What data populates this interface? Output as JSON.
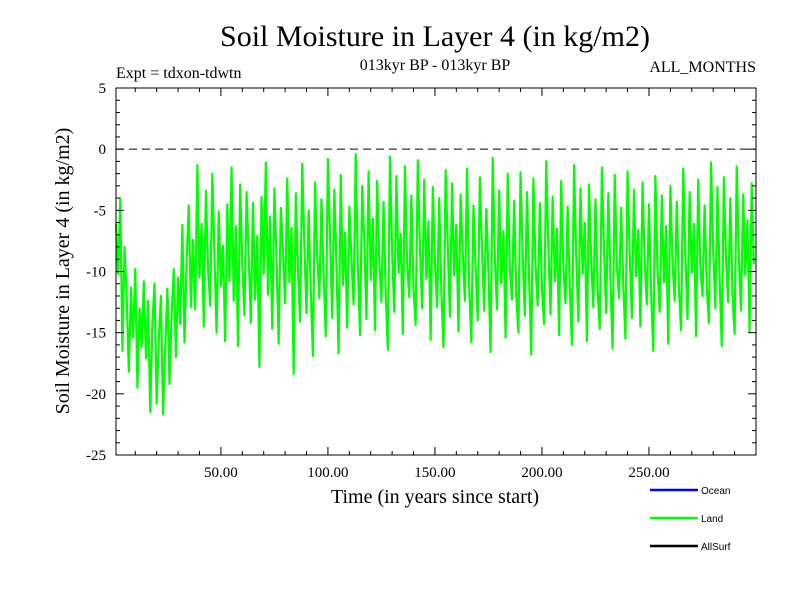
{
  "chart_data": {
    "type": "line",
    "title": "Soil Moisture in Layer 4 (in kg/m2)",
    "subtitle_left": "Expt = tdxon-tdwtn",
    "subtitle_center": "013kyr BP - 013kyr BP",
    "subtitle_right": "ALL_MONTHS",
    "xlabel": "Time (in years since start)",
    "ylabel": "Soil Moisture in Layer 4 (in kg/m2)",
    "xlim": [
      1,
      300
    ],
    "ylim": [
      -25,
      5
    ],
    "x_ticks": [
      {
        "value": 50,
        "label": "50.00"
      },
      {
        "value": 100,
        "label": "100.00"
      },
      {
        "value": 150,
        "label": "150.00"
      },
      {
        "value": 200,
        "label": "200.00"
      },
      {
        "value": 250,
        "label": "250.00"
      }
    ],
    "y_ticks": [
      {
        "value": 5,
        "label": "5"
      },
      {
        "value": 0,
        "label": "0"
      },
      {
        "value": -5,
        "label": "-5"
      },
      {
        "value": -10,
        "label": "-10"
      },
      {
        "value": -15,
        "label": "-15"
      },
      {
        "value": -20,
        "label": "-20"
      },
      {
        "value": -25,
        "label": "-25"
      }
    ],
    "reference_line": {
      "y": 0,
      "style": "dashed"
    },
    "legend": {
      "placement": "bottom-right",
      "entries": [
        {
          "name": "Ocean",
          "color": "#0000ff"
        },
        {
          "name": "Land",
          "color": "#00ff00"
        },
        {
          "name": "AllSurf",
          "color": "#000000"
        }
      ]
    },
    "series": [
      {
        "name": "Land",
        "color": "#00ff00",
        "x_start": 1,
        "x_step": 1,
        "values": [
          -6.1,
          -10.2,
          -4.0,
          -16.5,
          -8.0,
          -12.1,
          -18.2,
          -11.3,
          -15.4,
          -9.8,
          -19.5,
          -13.0,
          -16.2,
          -10.8,
          -17.1,
          -12.4,
          -21.5,
          -14.2,
          -11.0,
          -20.8,
          -15.5,
          -12.0,
          -21.7,
          -16.3,
          -11.4,
          -19.2,
          -13.5,
          -9.8,
          -17.0,
          -10.5,
          -14.3,
          -6.2,
          -15.8,
          -9.1,
          -4.6,
          -12.9,
          -7.4,
          -13.1,
          -1.3,
          -10.5,
          -6.1,
          -14.5,
          -3.4,
          -9.7,
          -12.8,
          -2.0,
          -8.8,
          -15.0,
          -5.1,
          -11.2,
          -7.9,
          -15.7,
          -4.5,
          -10.8,
          -1.5,
          -12.4,
          -6.3,
          -16.1,
          -2.9,
          -9.4,
          -13.6,
          -3.5,
          -8.7,
          -14.2,
          -4.4,
          -12.3,
          -7.1,
          -17.8,
          -3.9,
          -10.2,
          -1.1,
          -11.9,
          -5.5,
          -14.7,
          -3.2,
          -9.0,
          -15.9,
          -4.8,
          -8.3,
          -12.6,
          -2.4,
          -10.9,
          -6.4,
          -18.4,
          -3.6,
          -9.9,
          -14.1,
          -1.2,
          -7.8,
          -13.4,
          -5.0,
          -11.6,
          -16.9,
          -2.7,
          -8.6,
          -12.2,
          -4.1,
          -10.4,
          -15.3,
          -0.8,
          -7.2,
          -13.8,
          -3.3,
          -9.5,
          -16.7,
          -2.1,
          -11.1,
          -6.8,
          -14.6,
          -4.7,
          -8.9,
          -12.7,
          -0.4,
          -9.6,
          -15.2,
          -3.0,
          -7.5,
          -13.9,
          -1.8,
          -10.7,
          -5.7,
          -14.8,
          -2.6,
          -9.2,
          -12.5,
          -4.3,
          -11.8,
          -16.4,
          -0.6,
          -8.4,
          -13.3,
          -2.2,
          -10.1,
          -6.9,
          -15.1,
          -1.4,
          -9.3,
          -12.1,
          -3.8,
          -11.5,
          -14.4,
          -0.9,
          -8.1,
          -13.0,
          -2.5,
          -10.6,
          -5.9,
          -15.6,
          -3.1,
          -9.1,
          -12.9,
          -4.0,
          -11.7,
          -16.2,
          -1.7,
          -7.9,
          -13.7,
          -2.8,
          -10.3,
          -6.2,
          -14.9,
          -3.7,
          -8.5,
          -12.4,
          -1.6,
          -11.3,
          -15.8,
          -4.6,
          -9.7,
          -14.0,
          -2.3,
          -8.2,
          -13.2,
          -4.9,
          -10.0,
          -16.6,
          -0.7,
          -9.0,
          -13.1,
          -3.4,
          -11.0,
          -6.7,
          -15.4,
          -2.0,
          -9.8,
          -12.3,
          -4.2,
          -11.9,
          -15.0,
          -1.9,
          -8.8,
          -13.6,
          -3.5,
          -10.5,
          -16.8,
          -2.4,
          -9.4,
          -12.8,
          -4.4,
          -11.4,
          -14.3,
          -1.0,
          -8.0,
          -13.5,
          -3.9,
          -10.8,
          -6.5,
          -15.2,
          -2.6,
          -9.6,
          -12.6,
          -4.7,
          -11.2,
          -16.0,
          -1.3,
          -8.7,
          -14.1,
          -3.2,
          -10.2,
          -6.0,
          -15.7,
          -2.9,
          -9.1,
          -12.9,
          -4.1,
          -11.6,
          -14.7,
          -1.5,
          -8.3,
          -13.4,
          -3.6,
          -10.7,
          -16.3,
          -2.1,
          -9.5,
          -12.2,
          -4.8,
          -11.1,
          -15.5,
          -1.8,
          -8.6,
          -13.8,
          -3.3,
          -10.4,
          -6.6,
          -14.5,
          -2.7,
          -9.2,
          -12.7,
          -4.5,
          -11.8,
          -16.5,
          -2.2,
          -9.9,
          -13.3,
          -3.8,
          -10.9,
          -6.3,
          -15.9,
          -3.0,
          -9.3,
          -12.4,
          -4.3,
          -11.5,
          -14.8,
          -1.6,
          -8.5,
          -13.9,
          -3.5,
          -10.1,
          -6.1,
          -15.3,
          -2.5,
          -9.7,
          -12.0,
          -4.6,
          -11.3,
          -14.2,
          -1.1,
          -8.2,
          -13.0,
          -3.1,
          -10.6,
          -16.1,
          -2.3,
          -9.0,
          -12.5,
          -4.0,
          -11.9,
          -15.1,
          -1.4,
          -8.9,
          -13.2,
          -3.7,
          -10.3,
          -5.8,
          -14.9,
          -2.8,
          -9.4
        ]
      }
    ]
  }
}
